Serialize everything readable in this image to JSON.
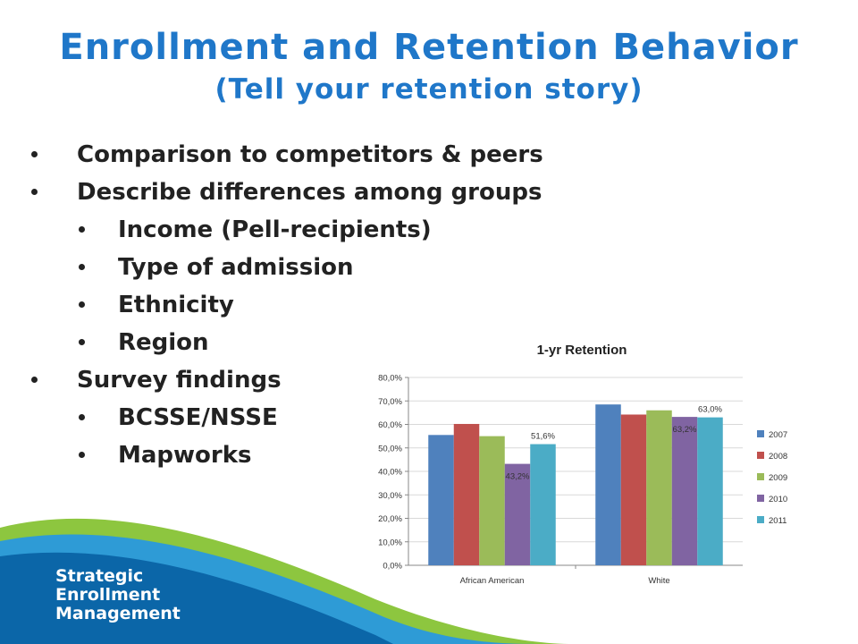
{
  "slide": {
    "title": "Enrollment and Retention Behavior",
    "subtitle": "(Tell your retention story)"
  },
  "bullets": [
    {
      "level": 1,
      "text": "Comparison to competitors & peers"
    },
    {
      "level": 1,
      "text": "Describe differences among groups"
    },
    {
      "level": 2,
      "text": "Income (Pell-recipients)"
    },
    {
      "level": 2,
      "text": "Type of admission"
    },
    {
      "level": 2,
      "text": "Ethnicity"
    },
    {
      "level": 2,
      "text": "Region"
    },
    {
      "level": 1,
      "text": "Survey findings"
    },
    {
      "level": 2,
      "text": "BCSSE/NSSE"
    },
    {
      "level": 2,
      "text": "Mapworks"
    }
  ],
  "logo": {
    "line1": "Strategic",
    "line2": "Enrollment",
    "line3": "Management"
  },
  "chart_data": {
    "type": "bar",
    "title": "1-yr Retention",
    "xlabel": "",
    "ylabel": "",
    "categories": [
      "African American",
      "White"
    ],
    "ylim": [
      0,
      80
    ],
    "yticks": [
      "0,0%",
      "10,0%",
      "20,0%",
      "30,0%",
      "40,0%",
      "50,0%",
      "60,0%",
      "70,0%",
      "80,0%"
    ],
    "grid": true,
    "legend": "right",
    "series": [
      {
        "name": "2007",
        "color": "#4f81bd",
        "values": [
          55.5,
          68.5
        ],
        "labels": [
          "",
          ""
        ]
      },
      {
        "name": "2008",
        "color": "#c0504d",
        "values": [
          60.2,
          64.2
        ],
        "labels": [
          "",
          ""
        ]
      },
      {
        "name": "2009",
        "color": "#9bbb59",
        "values": [
          55.0,
          66.0
        ],
        "labels": [
          "",
          ""
        ]
      },
      {
        "name": "2010",
        "color": "#8064a2",
        "values": [
          43.2,
          63.2
        ],
        "labels": [
          "43,2%",
          "63,2%"
        ]
      },
      {
        "name": "2011",
        "color": "#4bacc6",
        "values": [
          51.6,
          63.0
        ],
        "labels": [
          "51,6%",
          "63,0%"
        ]
      }
    ]
  }
}
